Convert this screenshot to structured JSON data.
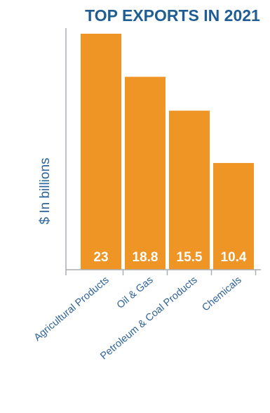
{
  "chart_data": {
    "type": "bar",
    "title": "TOP EXPORTS IN 2021",
    "xlabel": "",
    "ylabel": "$ In billions",
    "categories": [
      "Agricultural Products",
      "Oil & Gas",
      "Petroleum & Coal Products",
      "Chemicals"
    ],
    "values": [
      23,
      18.8,
      15.5,
      10.4
    ],
    "value_labels": [
      "23",
      "18.8",
      "15.5",
      "10.4"
    ],
    "ylim": [
      0,
      23
    ],
    "grid": false,
    "legend": "none",
    "colors": {
      "bar": "#EE9525",
      "title": "#1F5D94",
      "axis_label": "#2E6397",
      "tick_label": "#2E6397",
      "axis_line": "#A8AEB4",
      "value_label": "#ffffff"
    }
  }
}
